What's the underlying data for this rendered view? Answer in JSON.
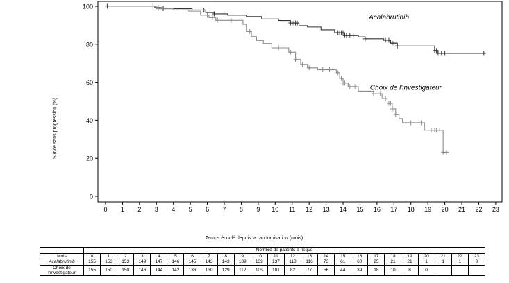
{
  "chart_data": {
    "type": "line",
    "subtype": "kaplan-meier step",
    "xlabel": "Temps écoulé depuis la randomisation (mois)",
    "ylabel": "Survie sans progression (%)",
    "xlim": [
      0,
      23
    ],
    "ylim": [
      0,
      100
    ],
    "xticks": [
      0,
      1,
      2,
      3,
      4,
      5,
      6,
      7,
      8,
      9,
      10,
      11,
      12,
      13,
      14,
      15,
      16,
      17,
      18,
      19,
      20,
      21,
      22,
      23
    ],
    "yticks": [
      0,
      20,
      40,
      60,
      80,
      100
    ],
    "grid": false,
    "series": [
      {
        "name": "Acalabrutinib",
        "color": "#333333",
        "label_position": [
          16.7,
          93
        ],
        "steps": [
          [
            0,
            100
          ],
          [
            2.9,
            99.3
          ],
          [
            3.3,
            98.7
          ],
          [
            5.1,
            98
          ],
          [
            5.9,
            96.7
          ],
          [
            6.4,
            96
          ],
          [
            7.2,
            95.3
          ],
          [
            8.3,
            94.6
          ],
          [
            9.2,
            93.3
          ],
          [
            10.2,
            92.5
          ],
          [
            10.9,
            91.2
          ],
          [
            11.4,
            89.8
          ],
          [
            11.9,
            89.1
          ],
          [
            12.7,
            87.6
          ],
          [
            13.5,
            86.1
          ],
          [
            14.1,
            84.6
          ],
          [
            14.9,
            83.9
          ],
          [
            15.3,
            82.9
          ],
          [
            16.4,
            82.1
          ],
          [
            16.8,
            80.6
          ],
          [
            17.2,
            79.1
          ],
          [
            19.4,
            76.7
          ],
          [
            19.6,
            75.2
          ]
        ],
        "end": 22.4,
        "censored": [
          0.1,
          2.8,
          3.1,
          3.4,
          5.8,
          6.4,
          7.1,
          10.9,
          11.0,
          11.1,
          11.2,
          11.3,
          13.7,
          13.8,
          13.9,
          14.0,
          14.1,
          14.2,
          14.4,
          14.6,
          15.3,
          16.5,
          16.7,
          16.9,
          17.0,
          17.2,
          19.4,
          19.5,
          19.6,
          19.8,
          20.0,
          22.3
        ]
      },
      {
        "name": "Choix de l'investigateur",
        "color": "#8c8c8c",
        "label_position": [
          17.7,
          56
        ],
        "steps": [
          [
            0,
            100
          ],
          [
            3,
            98.7
          ],
          [
            4,
            98
          ],
          [
            4.9,
            97.4
          ],
          [
            5.6,
            95.3
          ],
          [
            6.1,
            94
          ],
          [
            6.5,
            92.6
          ],
          [
            8.1,
            90.5
          ],
          [
            8.3,
            86.7
          ],
          [
            8.6,
            84
          ],
          [
            8.9,
            82
          ],
          [
            9.3,
            80.4
          ],
          [
            9.8,
            78.1
          ],
          [
            10.8,
            75.8
          ],
          [
            11.2,
            72
          ],
          [
            11.5,
            69.4
          ],
          [
            11.9,
            67.6
          ],
          [
            12.5,
            66.6
          ],
          [
            13.6,
            65
          ],
          [
            13.8,
            62
          ],
          [
            14,
            59.6
          ],
          [
            14.3,
            57.7
          ],
          [
            14.9,
            55.3
          ],
          [
            15.8,
            54
          ],
          [
            16.3,
            51.5
          ],
          [
            16.6,
            48.9
          ],
          [
            16.9,
            46
          ],
          [
            17.1,
            43
          ],
          [
            17.3,
            40.9
          ],
          [
            17.5,
            38.7
          ],
          [
            18.8,
            34.8
          ],
          [
            19.9,
            23.2
          ]
        ],
        "end": 20.1,
        "censored": [
          2.8,
          3.1,
          6.0,
          6.3,
          6.6,
          7.4,
          8.5,
          8.7,
          10.2,
          10.9,
          11.2,
          11.4,
          11.6,
          12.0,
          12.8,
          13.2,
          13.4,
          13.7,
          13.9,
          14.0,
          14.1,
          14.4,
          14.7,
          15.8,
          16.2,
          16.5,
          16.7,
          16.8,
          16.9,
          17.0,
          17.1,
          17.7,
          18.0,
          18.6,
          19.2,
          19.4,
          19.5,
          19.7,
          19.9,
          20.1
        ]
      }
    ]
  },
  "table": {
    "title": "Nombre de patients à risque",
    "header_label": "Mois",
    "months": [
      "0",
      "1",
      "2",
      "3",
      "4",
      "5",
      "6",
      "7",
      "8",
      "9",
      "10",
      "11",
      "12",
      "13",
      "14",
      "15",
      "16",
      "17",
      "18",
      "19",
      "20",
      "21",
      "22",
      "23"
    ],
    "rows": [
      {
        "label": "Acalabrutinib",
        "values": [
          "155",
          "153",
          "153",
          "149",
          "147",
          "146",
          "145",
          "143",
          "143",
          "139",
          "139",
          "137",
          "118",
          "116",
          "73",
          "61",
          "60",
          "25",
          "21",
          "21",
          "1",
          "1",
          "1",
          "0"
        ]
      },
      {
        "label": "Choix de l'investigateur",
        "values": [
          "155",
          "150",
          "150",
          "146",
          "144",
          "142",
          "136",
          "130",
          "129",
          "112",
          "105",
          "101",
          "82",
          "77",
          "56",
          "44",
          "39",
          "18",
          "10",
          "8",
          "0",
          "",
          "",
          ""
        ]
      }
    ]
  }
}
